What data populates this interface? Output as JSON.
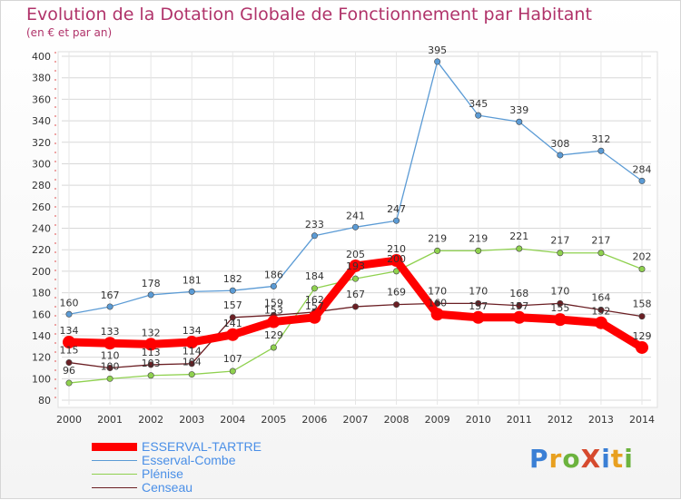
{
  "header": {
    "title": "Evolution de la Dotation Globale de Fonctionnement par Habitant",
    "subtitle": "(en € et par an)"
  },
  "brand": {
    "text": "ProXiti",
    "colors": [
      "#3a7fd5",
      "#e8a020",
      "#6cb33e",
      "#d64a2e",
      "#3a7fd5",
      "#e8a020",
      "#6cb33e"
    ]
  },
  "chart_data": {
    "type": "line",
    "title": "Evolution de la Dotation Globale de Fonctionnement par Habitant",
    "subtitle": "(en € et par an)",
    "xlabel": "",
    "ylabel": "",
    "x": [
      "2000",
      "2001",
      "2002",
      "2003",
      "2004",
      "2005",
      "2006",
      "2007",
      "2008",
      "2009",
      "2010",
      "2011",
      "2012",
      "2013",
      "2014"
    ],
    "ylim": [
      80,
      400
    ],
    "yticks": [
      80,
      100,
      120,
      140,
      160,
      180,
      200,
      220,
      240,
      260,
      280,
      300,
      320,
      340,
      360,
      380,
      400
    ],
    "grid": true,
    "legend_position": "bottom-left",
    "series": [
      {
        "name": "ESSERVAL-TARTRE",
        "color": "#ff0000",
        "values": [
          134,
          133,
          132,
          134,
          141,
          153,
          157,
          205,
          210,
          160,
          157,
          157,
          155,
          152,
          129
        ]
      },
      {
        "name": "Esserval-Combe",
        "color": "#5b9bd5",
        "values": [
          160,
          167,
          178,
          181,
          182,
          186,
          233,
          241,
          247,
          395,
          345,
          339,
          308,
          312,
          284
        ]
      },
      {
        "name": "Plénise",
        "color": "#8fd14f",
        "values": [
          96,
          100,
          103,
          104,
          107,
          129,
          184,
          193,
          200,
          219,
          219,
          221,
          217,
          217,
          202
        ]
      },
      {
        "name": "Censeau",
        "color": "#6b1f24",
        "values": [
          115,
          110,
          113,
          114,
          157,
          159,
          162,
          167,
          169,
          170,
          170,
          168,
          170,
          164,
          158
        ]
      }
    ]
  }
}
